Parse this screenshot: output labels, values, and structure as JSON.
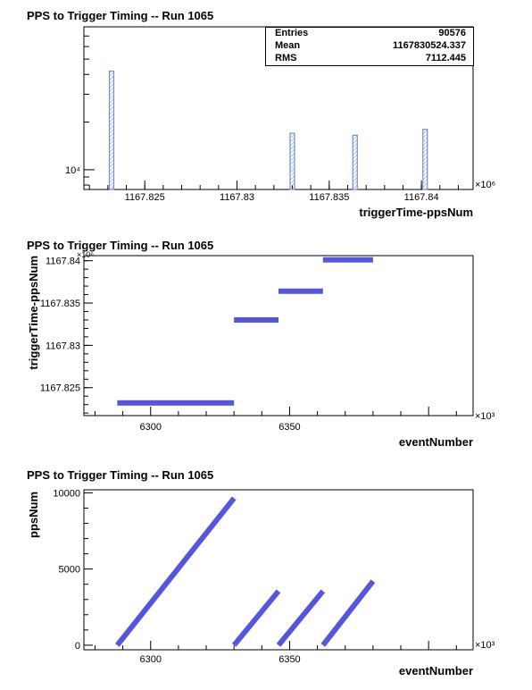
{
  "chart_data": [
    {
      "type": "histogram",
      "title": "PPS to Trigger Timing -- Run 1065",
      "xlabel": "triggerTime-ppsNum",
      "ylabel": "",
      "x_multiplier": "×10⁶",
      "xlim": [
        1167.8217,
        1167.8428
      ],
      "x_ticks": [
        "1167.825",
        "1167.83",
        "1167.835",
        "1167.84"
      ],
      "x_tick_values": [
        1167.825,
        1167.83,
        1167.835,
        1167.84
      ],
      "y_scale": "log",
      "y_tick_labels": [
        "10⁴"
      ],
      "y_tick_values": [
        10000
      ],
      "stats": {
        "Entries": "90576",
        "Mean": "1167830524.337",
        "RMS": "7112.445"
      },
      "bins": [
        {
          "x": 1167.8232,
          "count": 42000
        },
        {
          "x": 1167.833,
          "count": 17000
        },
        {
          "x": 1167.8364,
          "count": 16500
        },
        {
          "x": 1167.8402,
          "count": 18000
        }
      ],
      "colors": {
        "bars": "#6f8fcf"
      }
    },
    {
      "type": "scatter",
      "title": "PPS to Trigger Timing -- Run 1065",
      "xlabel": "eventNumber",
      "ylabel": "triggerTime-ppsNum",
      "x_multiplier": "×10³",
      "y_multiplier": "×10⁶",
      "xlim": [
        6276,
        6416
      ],
      "ylim": [
        1167.8217,
        1167.8406
      ],
      "x_ticks": [
        "6300",
        "6350"
      ],
      "x_tick_values": [
        6300,
        6350
      ],
      "y_ticks": [
        "1167.825",
        "1167.83",
        "1167.835",
        "1167.84"
      ],
      "y_tick_values": [
        1167.825,
        1167.83,
        1167.835,
        1167.84
      ],
      "segments": [
        {
          "x0": 6288,
          "x1": 6330,
          "y": 1167.8232
        },
        {
          "x0": 6330,
          "x1": 6346,
          "y": 1167.833
        },
        {
          "x0": 6346,
          "x1": 6362,
          "y": 1167.8364
        },
        {
          "x0": 6362,
          "x1": 6380,
          "y": 1167.8401
        }
      ],
      "colors": {
        "markers": "#5555dd"
      }
    },
    {
      "type": "scatter",
      "title": "PPS to Trigger Timing -- Run 1065",
      "xlabel": "eventNumber",
      "ylabel": "ppsNum",
      "x_multiplier": "×10³",
      "xlim": [
        6276,
        6416
      ],
      "ylim": [
        -300,
        10200
      ],
      "x_ticks": [
        "6300",
        "6350"
      ],
      "x_tick_values": [
        6300,
        6350
      ],
      "y_ticks": [
        "0",
        "5000",
        "10000"
      ],
      "y_tick_values": [
        0,
        5000,
        10000
      ],
      "segments": [
        {
          "x0": 6288,
          "y0": 0,
          "x1": 6330,
          "y1": 9650
        },
        {
          "x0": 6330,
          "y0": 0,
          "x1": 6346,
          "y1": 3550
        },
        {
          "x0": 6346,
          "y0": 0,
          "x1": 6362,
          "y1": 3550
        },
        {
          "x0": 6362,
          "y0": 0,
          "x1": 6380,
          "y1": 4200
        }
      ],
      "colors": {
        "markers": "#5555dd"
      }
    }
  ]
}
